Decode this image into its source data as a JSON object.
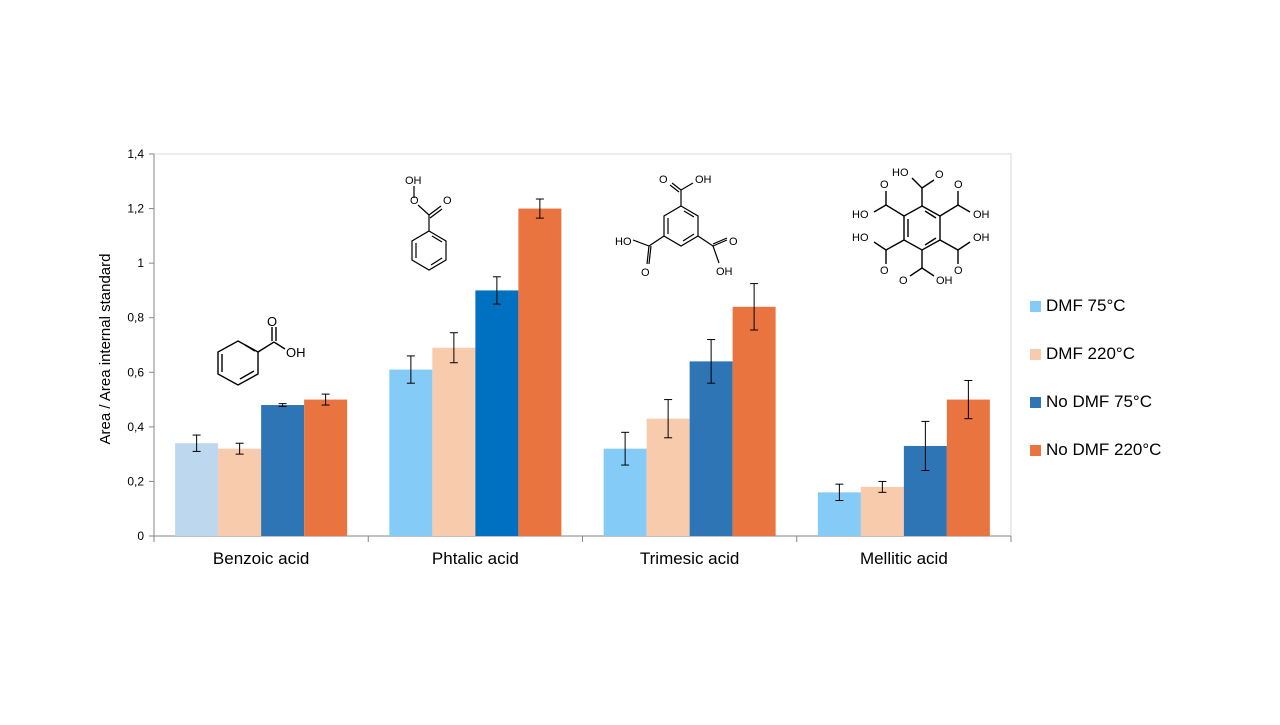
{
  "chart_data": {
    "type": "bar",
    "title": "",
    "xlabel": "",
    "ylabel": "Area / Area internal standard",
    "ylim": [
      0,
      1.4
    ],
    "yticks": [
      "0",
      "0,2",
      "0,4",
      "0,6",
      "0,8",
      "1",
      "1,2",
      "1,4"
    ],
    "categories": [
      "Benzoic acid",
      "Phtalic acid",
      "Trimesic acid",
      "Mellitic acid"
    ],
    "grid": false,
    "legend_position": "right",
    "series": [
      {
        "name": "DMF 75°C",
        "color": "#85cbf8",
        "values": [
          0.34,
          0.61,
          0.32,
          0.16
        ],
        "errors": [
          0.03,
          0.05,
          0.06,
          0.03
        ]
      },
      {
        "name": "DMF 220°C",
        "color": "#f7cbac",
        "values": [
          0.32,
          0.69,
          0.43,
          0.18
        ],
        "errors": [
          0.02,
          0.055,
          0.07,
          0.02
        ]
      },
      {
        "name": "No DMF 75°C",
        "color": "#2e75b6",
        "values": [
          0.48,
          0.9,
          0.64,
          0.33
        ],
        "errors": [
          0.005,
          0.05,
          0.08,
          0.09
        ]
      },
      {
        "name": "No DMF 220°C",
        "color": "#ea7440",
        "values": [
          0.5,
          1.2,
          0.84,
          0.5
        ],
        "errors": [
          0.02,
          0.035,
          0.085,
          0.07
        ]
      }
    ],
    "bar_overrides": [
      {
        "series": 0,
        "category": 0,
        "color": "#bdd7ee"
      },
      {
        "series": 2,
        "category": 1,
        "color": "#0070c0"
      }
    ],
    "annotations": {
      "structure_labels": [
        "OH",
        "O",
        "HO"
      ]
    }
  }
}
